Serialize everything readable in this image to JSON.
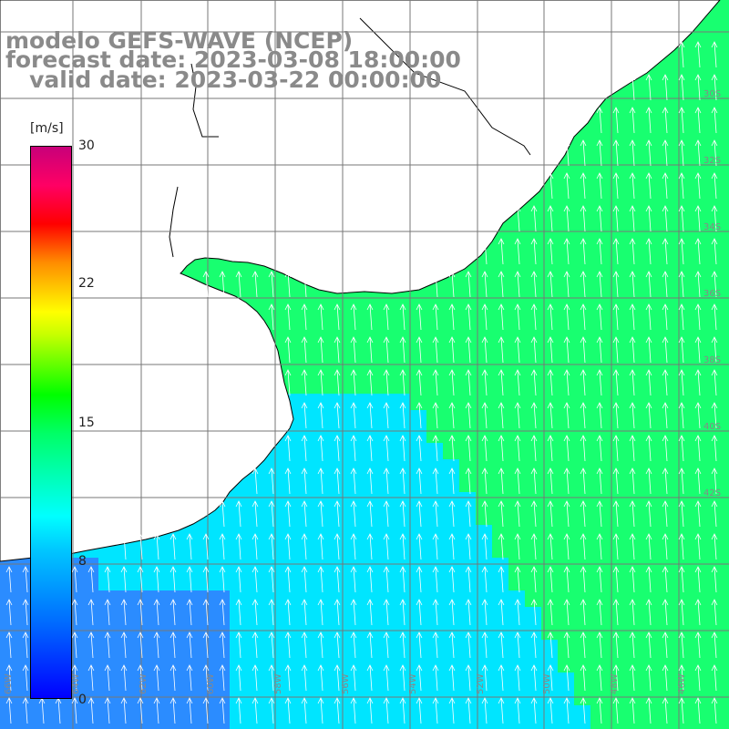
{
  "title": {
    "line1": "modelo GEFS-WAVE (NCEP)",
    "line2": "forecast date: 2023-03-08 18:00:00",
    "line3": "   valid date: 2023-03-22 00:00:00"
  },
  "colorbar": {
    "unit": "[m/s]",
    "ticks": [
      "30",
      "22",
      "15",
      "8",
      "0"
    ],
    "colors": [
      "#0000ff",
      "#00c8ff",
      "#00ffff",
      "#00ff00",
      "#ffff00",
      "#ff0000",
      "#c8007a"
    ]
  },
  "map": {
    "ocean_palette": {
      "weak": "#2b8cff",
      "moderate": "#00e5ff",
      "strong": "#18ff70"
    },
    "land_color": "#ffffff",
    "coastline_color": "#000000",
    "grid_color": "#777777",
    "arrow_color": "#ffffff",
    "lat_labels": [
      "30S",
      "32S",
      "34S",
      "36S",
      "38S",
      "40S",
      "42S"
    ],
    "lon_labels": [
      "66W",
      "64W",
      "62W",
      "60W",
      "58W",
      "56W",
      "54W",
      "52W",
      "50W",
      "48W",
      "46W"
    ]
  }
}
